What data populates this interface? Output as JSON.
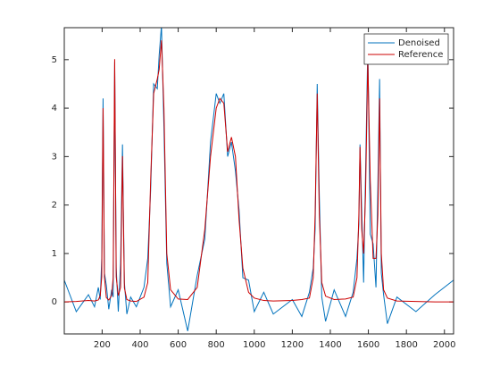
{
  "chart_data": {
    "type": "line",
    "x": [
      1,
      64,
      128,
      160,
      180,
      190,
      198,
      205,
      212,
      222,
      235,
      250,
      258,
      266,
      274,
      285,
      297,
      307,
      317,
      330,
      350,
      380,
      420,
      440,
      455,
      471,
      490,
      500,
      512,
      525,
      540,
      560,
      600,
      650,
      700,
      740,
      770,
      800,
      819,
      840,
      860,
      880,
      901,
      920,
      940,
      970,
      1000,
      1050,
      1100,
      1200,
      1250,
      1290,
      1310,
      1320,
      1331,
      1342,
      1355,
      1375,
      1420,
      1480,
      1520,
      1540,
      1550,
      1556,
      1565,
      1575,
      1585,
      1597,
      1610,
      1625,
      1640,
      1650,
      1659,
      1668,
      1680,
      1700,
      1750,
      1850,
      1950,
      2048
    ],
    "series": [
      {
        "name": "Denoised",
        "color": "#0072bd",
        "values": [
          0.45,
          -0.2,
          0.15,
          -0.1,
          0.3,
          0.05,
          0.9,
          4.2,
          0.6,
          0.35,
          -0.15,
          0.25,
          0.1,
          4.95,
          0.7,
          -0.2,
          0.8,
          3.25,
          0.4,
          -0.25,
          0.1,
          -0.1,
          0.3,
          0.9,
          2.3,
          4.5,
          4.4,
          5.1,
          5.7,
          3.6,
          0.8,
          -0.1,
          0.25,
          -0.6,
          0.55,
          1.3,
          3.3,
          4.3,
          4.1,
          4.3,
          3.0,
          3.3,
          2.7,
          1.9,
          0.5,
          0.45,
          -0.2,
          0.2,
          -0.25,
          0.05,
          -0.3,
          0.2,
          0.7,
          1.5,
          4.5,
          2.2,
          0.1,
          -0.4,
          0.25,
          -0.3,
          0.2,
          0.9,
          1.6,
          3.25,
          1.9,
          0.4,
          2.6,
          5.3,
          1.4,
          1.2,
          0.3,
          2.4,
          4.6,
          0.6,
          0.15,
          -0.45,
          0.1,
          -0.2,
          0.15,
          0.45
        ]
      },
      {
        "name": "Reference",
        "color": "#cc0000",
        "values": [
          0.0,
          0.01,
          0.03,
          0.02,
          0.04,
          0.13,
          0.52,
          4.0,
          0.52,
          0.09,
          0.04,
          0.13,
          0.5,
          5.01,
          0.52,
          0.13,
          0.3,
          3.01,
          0.29,
          0.05,
          0.02,
          0.01,
          0.1,
          0.4,
          2.5,
          4.3,
          4.6,
          4.8,
          5.4,
          4.0,
          1.0,
          0.25,
          0.06,
          0.05,
          0.3,
          1.5,
          3.0,
          4.0,
          4.2,
          4.1,
          3.1,
          3.4,
          3.0,
          1.7,
          0.7,
          0.2,
          0.08,
          0.03,
          0.02,
          0.03,
          0.05,
          0.08,
          0.5,
          1.8,
          4.3,
          1.8,
          0.4,
          0.12,
          0.05,
          0.06,
          0.1,
          0.5,
          1.8,
          3.2,
          1.5,
          1.0,
          2.2,
          5.0,
          2.5,
          0.9,
          0.9,
          1.8,
          4.2,
          1.0,
          0.25,
          0.08,
          0.02,
          0.01,
          0.0,
          0.0
        ]
      }
    ],
    "xlim": [
      1,
      2048
    ],
    "xticks": [
      200,
      400,
      600,
      800,
      1000,
      1200,
      1400,
      1600,
      1800,
      2000
    ],
    "ylim": [
      -0.66,
      5.66
    ],
    "yticks": [
      0,
      1,
      2,
      3,
      4,
      5
    ],
    "grid": false,
    "legend": "northeast"
  }
}
